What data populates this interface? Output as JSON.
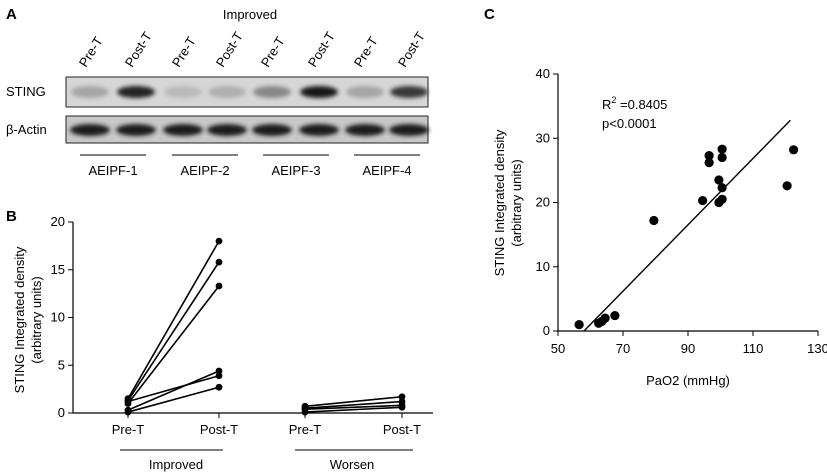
{
  "panels": {
    "a": {
      "letter": "A",
      "group_label": "Improved",
      "lane_labels": [
        "Pre-T",
        "Post-T",
        "Pre-T",
        "Post-T",
        "Pre-T",
        "Post-T",
        "Pre-T",
        "Post-T"
      ],
      "row_labels": [
        "STING",
        "β-Actin"
      ],
      "patients": [
        "AEIPF-1",
        "AEIPF-2",
        "AEIPF-3",
        "AEIPF-4"
      ],
      "sting_band_intensity": [
        0.25,
        0.9,
        0.15,
        0.2,
        0.4,
        0.95,
        0.25,
        0.8
      ],
      "actin_band_intensity": [
        0.9,
        0.9,
        0.9,
        0.9,
        0.9,
        0.9,
        0.9,
        0.9
      ]
    },
    "b": {
      "letter": "B",
      "ylabel_line1": "STING Integrated density",
      "ylabel_line2": "(arbitrary units)",
      "ytick_labels": [
        "0",
        "5",
        "10",
        "15",
        "20"
      ],
      "xtick_labels": [
        "Pre-T",
        "Post-T",
        "Pre-T",
        "Post-T"
      ],
      "group_labels": [
        "Improved",
        "Worsen"
      ]
    },
    "c": {
      "letter": "C",
      "ylabel_line1": "STING Integrated density",
      "ylabel_line2": "(arbitrary units)",
      "xlabel": "PaO2 (mmHg)",
      "xtick_labels": [
        "50",
        "70",
        "90",
        "110",
        "130"
      ],
      "ytick_labels": [
        "0",
        "10",
        "20",
        "30",
        "40"
      ],
      "r2_prefix": "R",
      "r2_sup": "2",
      "r2_value": " =0.8405",
      "p_text": "p<0.0001"
    }
  },
  "chart_data": [
    {
      "type": "line",
      "ylabel": "STING Integrated density (arbitrary units)",
      "ylim": [
        0,
        20
      ],
      "categories": [
        "Pre-T",
        "Post-T"
      ],
      "groups": [
        {
          "name": "Improved",
          "pairs": [
            [
              1.5,
              18.0
            ],
            [
              1.3,
              15.8
            ],
            [
              1.0,
              13.3
            ],
            [
              0.3,
              4.4
            ],
            [
              1.2,
              3.9
            ],
            [
              0.1,
              2.7
            ]
          ]
        },
        {
          "name": "Worsen",
          "pairs": [
            [
              0.7,
              1.7
            ],
            [
              0.5,
              1.2
            ],
            [
              0.4,
              0.8
            ],
            [
              0.1,
              0.6
            ]
          ]
        }
      ]
    },
    {
      "type": "scatter",
      "xlabel": "PaO2 (mmHg)",
      "ylabel": "STING Integrated density (arbitrary units)",
      "xlim": [
        50,
        130
      ],
      "ylim": [
        0,
        40
      ],
      "points": [
        [
          56.5,
          1.0
        ],
        [
          62.5,
          1.2
        ],
        [
          63.5,
          1.5
        ],
        [
          64.5,
          2.0
        ],
        [
          67.5,
          2.4
        ],
        [
          79.5,
          17.2
        ],
        [
          94.5,
          20.3
        ],
        [
          96.5,
          27.3
        ],
        [
          96.5,
          26.2
        ],
        [
          99.5,
          23.5
        ],
        [
          99.5,
          20.0
        ],
        [
          100.5,
          28.3
        ],
        [
          100.5,
          27.0
        ],
        [
          100.5,
          22.3
        ],
        [
          100.5,
          20.5
        ],
        [
          120.5,
          22.6
        ],
        [
          122.5,
          28.2
        ]
      ],
      "fit_line": {
        "x": [
          58.0,
          121.5
        ],
        "y": [
          0.0,
          32.8
        ]
      },
      "annotations": [
        "R2 =0.8405",
        "p<0.0001"
      ]
    }
  ]
}
